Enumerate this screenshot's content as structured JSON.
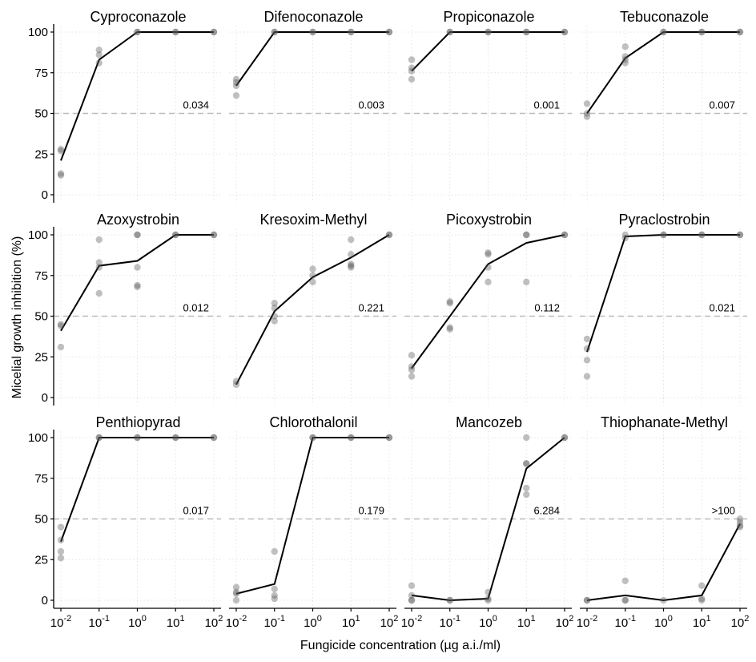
{
  "figure": {
    "xlabel": "Fungicide concentration (µg a.i./ml)",
    "ylabel": "Micelial growth inhibition (%)",
    "colors": {
      "points": "#5a5a5a",
      "line": "#000000",
      "threshold": "#bbbbbb",
      "grid": "#e4e4e4"
    }
  },
  "chart_data": [
    {
      "type": "scatter",
      "title": "Cyproconazole",
      "ec50_label": "0.034",
      "x": [
        0.01,
        0.1,
        1,
        10,
        100
      ],
      "xscale": "log",
      "ylim": [
        0,
        100
      ],
      "hline": 50,
      "grid": true,
      "points": [
        [
          0.01,
          28
        ],
        [
          0.01,
          27
        ],
        [
          0.01,
          13
        ],
        [
          0.01,
          12
        ],
        [
          0.1,
          89
        ],
        [
          0.1,
          86
        ],
        [
          0.1,
          81
        ],
        [
          1,
          100
        ],
        [
          1,
          100
        ],
        [
          10,
          100
        ],
        [
          10,
          100
        ],
        [
          100,
          100
        ],
        [
          100,
          100
        ]
      ],
      "fit": [
        21,
        83,
        100,
        100,
        100
      ]
    },
    {
      "type": "scatter",
      "title": "Difenoconazole",
      "ec50_label": "0.003",
      "x": [
        0.01,
        0.1,
        1,
        10,
        100
      ],
      "xscale": "log",
      "ylim": [
        0,
        100
      ],
      "hline": 50,
      "grid": true,
      "points": [
        [
          0.01,
          71
        ],
        [
          0.01,
          69
        ],
        [
          0.01,
          67
        ],
        [
          0.01,
          61
        ],
        [
          0.1,
          100
        ],
        [
          0.1,
          100
        ],
        [
          1,
          100
        ],
        [
          1,
          100
        ],
        [
          10,
          100
        ],
        [
          10,
          100
        ],
        [
          100,
          100
        ],
        [
          100,
          100
        ]
      ],
      "fit": [
        67,
        100,
        100,
        100,
        100
      ]
    },
    {
      "type": "scatter",
      "title": "Propiconazole",
      "ec50_label": "0.001",
      "x": [
        0.01,
        0.1,
        1,
        10,
        100
      ],
      "xscale": "log",
      "ylim": [
        0,
        100
      ],
      "hline": 50,
      "grid": true,
      "points": [
        [
          0.01,
          83
        ],
        [
          0.01,
          78
        ],
        [
          0.01,
          76
        ],
        [
          0.01,
          71
        ],
        [
          0.1,
          100
        ],
        [
          0.1,
          100
        ],
        [
          1,
          100
        ],
        [
          1,
          100
        ],
        [
          10,
          100
        ],
        [
          10,
          100
        ],
        [
          100,
          100
        ],
        [
          100,
          100
        ]
      ],
      "fit": [
        76,
        100,
        100,
        100,
        100
      ]
    },
    {
      "type": "scatter",
      "title": "Tebuconazole",
      "ec50_label": "0.007",
      "x": [
        0.01,
        0.1,
        1,
        10,
        100
      ],
      "xscale": "log",
      "ylim": [
        0,
        100
      ],
      "hline": 50,
      "grid": true,
      "points": [
        [
          0.01,
          56
        ],
        [
          0.01,
          50
        ],
        [
          0.01,
          48
        ],
        [
          0.1,
          91
        ],
        [
          0.1,
          85
        ],
        [
          0.1,
          83
        ],
        [
          0.1,
          81
        ],
        [
          1,
          100
        ],
        [
          1,
          100
        ],
        [
          10,
          100
        ],
        [
          10,
          100
        ],
        [
          100,
          100
        ],
        [
          100,
          100
        ]
      ],
      "fit": [
        50,
        84,
        100,
        100,
        100
      ]
    },
    {
      "type": "scatter",
      "title": "Azoxystrobin",
      "ec50_label": "0.012",
      "x": [
        0.01,
        0.1,
        1,
        10,
        100
      ],
      "xscale": "log",
      "ylim": [
        0,
        100
      ],
      "hline": 50,
      "grid": true,
      "points": [
        [
          0.01,
          45
        ],
        [
          0.01,
          44
        ],
        [
          0.01,
          31
        ],
        [
          0.1,
          97
        ],
        [
          0.1,
          83
        ],
        [
          0.1,
          80
        ],
        [
          0.1,
          64
        ],
        [
          1,
          100
        ],
        [
          1,
          100
        ],
        [
          1,
          80
        ],
        [
          1,
          69
        ],
        [
          1,
          68
        ],
        [
          10,
          100
        ],
        [
          10,
          100
        ],
        [
          100,
          100
        ],
        [
          100,
          100
        ]
      ],
      "fit": [
        41,
        81,
        84,
        100,
        100
      ]
    },
    {
      "type": "scatter",
      "title": "Kresoxim-Methyl",
      "ec50_label": "0.221",
      "x": [
        0.01,
        0.1,
        1,
        10,
        100
      ],
      "xscale": "log",
      "ylim": [
        0,
        100
      ],
      "hline": 50,
      "grid": true,
      "points": [
        [
          0.01,
          10
        ],
        [
          0.01,
          8
        ],
        [
          0.1,
          58
        ],
        [
          0.1,
          55
        ],
        [
          0.1,
          50
        ],
        [
          0.1,
          47
        ],
        [
          1,
          79
        ],
        [
          1,
          75
        ],
        [
          1,
          71
        ],
        [
          10,
          97
        ],
        [
          10,
          88
        ],
        [
          10,
          82
        ],
        [
          10,
          81
        ],
        [
          10,
          80
        ],
        [
          100,
          100
        ],
        [
          100,
          100
        ]
      ],
      "fit": [
        8,
        53,
        74,
        86,
        100
      ]
    },
    {
      "type": "scatter",
      "title": "Picoxystrobin",
      "ec50_label": "0.112",
      "x": [
        0.01,
        0.1,
        1,
        10,
        100
      ],
      "xscale": "log",
      "ylim": [
        0,
        100
      ],
      "hline": 50,
      "grid": true,
      "points": [
        [
          0.01,
          26
        ],
        [
          0.01,
          19
        ],
        [
          0.01,
          17
        ],
        [
          0.01,
          13
        ],
        [
          0.1,
          59
        ],
        [
          0.1,
          58
        ],
        [
          0.1,
          43
        ],
        [
          0.1,
          42
        ],
        [
          1,
          89
        ],
        [
          1,
          88
        ],
        [
          1,
          80
        ],
        [
          1,
          71
        ],
        [
          10,
          100
        ],
        [
          10,
          100
        ],
        [
          10,
          71
        ],
        [
          100,
          100
        ],
        [
          100,
          100
        ]
      ],
      "fit": [
        18,
        50,
        82,
        95,
        100
      ]
    },
    {
      "type": "scatter",
      "title": "Pyraclostrobin",
      "ec50_label": "0.021",
      "x": [
        0.01,
        0.1,
        1,
        10,
        100
      ],
      "xscale": "log",
      "ylim": [
        0,
        100
      ],
      "hline": 50,
      "grid": true,
      "points": [
        [
          0.01,
          36
        ],
        [
          0.01,
          30
        ],
        [
          0.01,
          23
        ],
        [
          0.01,
          13
        ],
        [
          0.1,
          100
        ],
        [
          0.1,
          98
        ],
        [
          1,
          100
        ],
        [
          1,
          100
        ],
        [
          10,
          100
        ],
        [
          10,
          100
        ],
        [
          100,
          100
        ],
        [
          100,
          100
        ]
      ],
      "fit": [
        28,
        99,
        100,
        100,
        100
      ]
    },
    {
      "type": "scatter",
      "title": "Penthiopyrad",
      "ec50_label": "0.017",
      "x": [
        0.01,
        0.1,
        1,
        10,
        100
      ],
      "xscale": "log",
      "ylim": [
        0,
        100
      ],
      "hline": 50,
      "grid": true,
      "points": [
        [
          0.01,
          45
        ],
        [
          0.01,
          37
        ],
        [
          0.01,
          30
        ],
        [
          0.01,
          26
        ],
        [
          0.1,
          100
        ],
        [
          0.1,
          100
        ],
        [
          1,
          100
        ],
        [
          1,
          100
        ],
        [
          10,
          100
        ],
        [
          10,
          100
        ],
        [
          100,
          100
        ],
        [
          100,
          100
        ]
      ],
      "fit": [
        36,
        100,
        100,
        100,
        100
      ]
    },
    {
      "type": "scatter",
      "title": "Chlorothalonil",
      "ec50_label": "0.179",
      "x": [
        0.01,
        0.1,
        1,
        10,
        100
      ],
      "xscale": "log",
      "ylim": [
        0,
        100
      ],
      "hline": 50,
      "grid": true,
      "points": [
        [
          0.01,
          8
        ],
        [
          0.01,
          5
        ],
        [
          0.01,
          4
        ],
        [
          0.01,
          0
        ],
        [
          0.1,
          30
        ],
        [
          0.1,
          7
        ],
        [
          0.1,
          3
        ],
        [
          0.1,
          1
        ],
        [
          1,
          100
        ],
        [
          1,
          100
        ],
        [
          10,
          100
        ],
        [
          10,
          100
        ],
        [
          100,
          100
        ],
        [
          100,
          100
        ]
      ],
      "fit": [
        4,
        10,
        100,
        100,
        100
      ]
    },
    {
      "type": "scatter",
      "title": "Mancozeb",
      "ec50_label": "6.284",
      "x": [
        0.01,
        0.1,
        1,
        10,
        100
      ],
      "xscale": "log",
      "ylim": [
        0,
        100
      ],
      "hline": 50,
      "grid": true,
      "points": [
        [
          0.01,
          9
        ],
        [
          0.01,
          3
        ],
        [
          0.01,
          0
        ],
        [
          0.01,
          0
        ],
        [
          0.1,
          0
        ],
        [
          0.1,
          0
        ],
        [
          1,
          5
        ],
        [
          1,
          1
        ],
        [
          1,
          0
        ],
        [
          10,
          100
        ],
        [
          10,
          84
        ],
        [
          10,
          84
        ],
        [
          10,
          69
        ],
        [
          10,
          65
        ],
        [
          100,
          100
        ],
        [
          100,
          100
        ]
      ],
      "fit": [
        3,
        0,
        1,
        81,
        100
      ]
    },
    {
      "type": "scatter",
      "title": "Thiophanate-Methyl",
      "ec50_label": ">100",
      "x": [
        0.01,
        0.1,
        1,
        10,
        100
      ],
      "xscale": "log",
      "ylim": [
        0,
        100
      ],
      "hline": 50,
      "grid": true,
      "points": [
        [
          0.01,
          0
        ],
        [
          0.01,
          0
        ],
        [
          0.1,
          12
        ],
        [
          0.1,
          0
        ],
        [
          0.1,
          0
        ],
        [
          1,
          0
        ],
        [
          10,
          9
        ],
        [
          10,
          1
        ],
        [
          10,
          0
        ],
        [
          100,
          50
        ],
        [
          100,
          48
        ],
        [
          100,
          46
        ],
        [
          100,
          45
        ]
      ],
      "fit": [
        0,
        3,
        0,
        3,
        47
      ]
    }
  ],
  "axes": {
    "y_ticks": [
      {
        "value": 0,
        "label": "0"
      },
      {
        "value": 25,
        "label": "25"
      },
      {
        "value": 50,
        "label": "50"
      },
      {
        "value": 75,
        "label": "75"
      },
      {
        "value": 100,
        "label": "100"
      }
    ],
    "x_ticks": [
      {
        "value": 0.01,
        "base": "10",
        "exp": "-2"
      },
      {
        "value": 0.1,
        "base": "10",
        "exp": "-1"
      },
      {
        "value": 1,
        "base": "10",
        "exp": "0"
      },
      {
        "value": 10,
        "base": "10",
        "exp": "1"
      },
      {
        "value": 100,
        "base": "10",
        "exp": "2"
      }
    ]
  }
}
